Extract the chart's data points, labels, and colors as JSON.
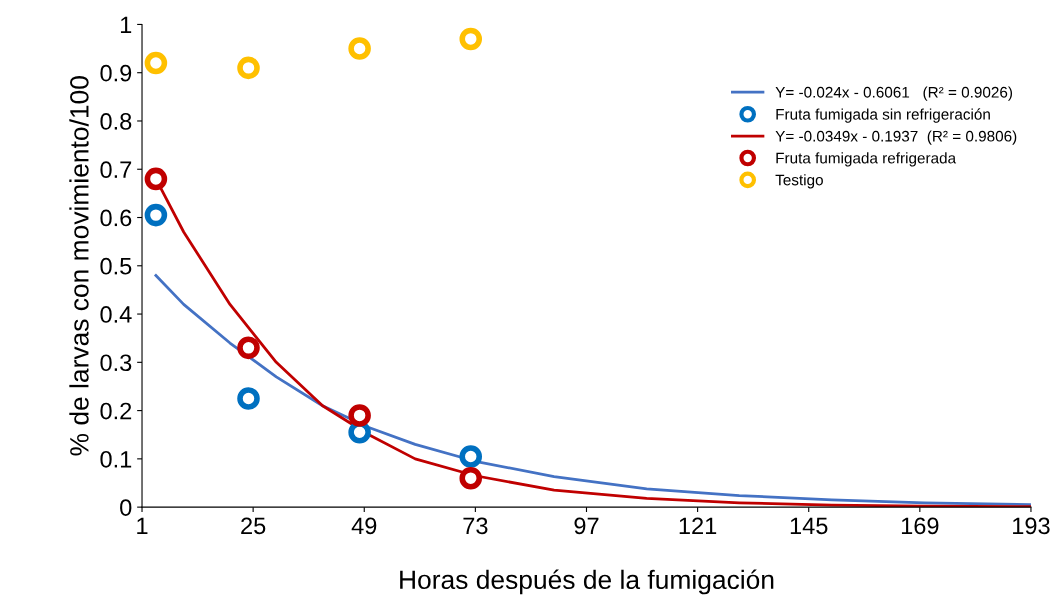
{
  "chart_data": {
    "type": "scatter",
    "xlabel": "Horas después de la fumigación",
    "ylabel": "% de larvas con movimiento/100",
    "xlim": [
      1,
      193
    ],
    "xticks": [
      1,
      25,
      49,
      73,
      97,
      121,
      145,
      169,
      193
    ],
    "ylim": [
      0,
      1
    ],
    "yticks": [
      0,
      0.1,
      0.2,
      0.3,
      0.4,
      0.5,
      0.6,
      0.7,
      0.8,
      0.9,
      1
    ],
    "grid": false,
    "legend": "top right",
    "marker": "circle",
    "series": [
      {
        "name": "Y= -0.024x - 0.6061   (R² = 0.9026)",
        "type": "line",
        "marker": "none",
        "color": "#4472c4",
        "x": [
          4,
          10,
          20,
          30,
          40,
          50,
          60,
          73,
          90,
          110,
          130,
          150,
          170,
          193
        ],
        "values": [
          0.48,
          0.42,
          0.34,
          0.27,
          0.21,
          0.165,
          0.13,
          0.095,
          0.063,
          0.038,
          0.024,
          0.015,
          0.009,
          0.005
        ]
      },
      {
        "name": "Fruta fumigada sin refrigeración",
        "color": "#0070c0",
        "x": [
          4,
          24,
          48,
          72
        ],
        "values": [
          0.605,
          0.225,
          0.155,
          0.105
        ]
      },
      {
        "name": "Y= -0.0349x - 0.1937  (R² = 0.9806)",
        "type": "line",
        "marker": "none",
        "color": "#c00000",
        "x": [
          4,
          10,
          20,
          30,
          40,
          50,
          60,
          73,
          90,
          110,
          130,
          150,
          170,
          193
        ],
        "values": [
          0.68,
          0.57,
          0.42,
          0.3,
          0.21,
          0.15,
          0.1,
          0.065,
          0.035,
          0.018,
          0.009,
          0.004,
          0.002,
          0.001
        ]
      },
      {
        "name": "Fruta fumigada refrigerada",
        "color": "#c00000",
        "x": [
          4,
          24,
          48,
          72
        ],
        "values": [
          0.68,
          0.33,
          0.19,
          0.06
        ]
      },
      {
        "name": "Testigo",
        "color": "#ffc000",
        "x": [
          4,
          24,
          48,
          72
        ],
        "values": [
          0.92,
          0.91,
          0.95,
          0.97
        ]
      }
    ]
  }
}
